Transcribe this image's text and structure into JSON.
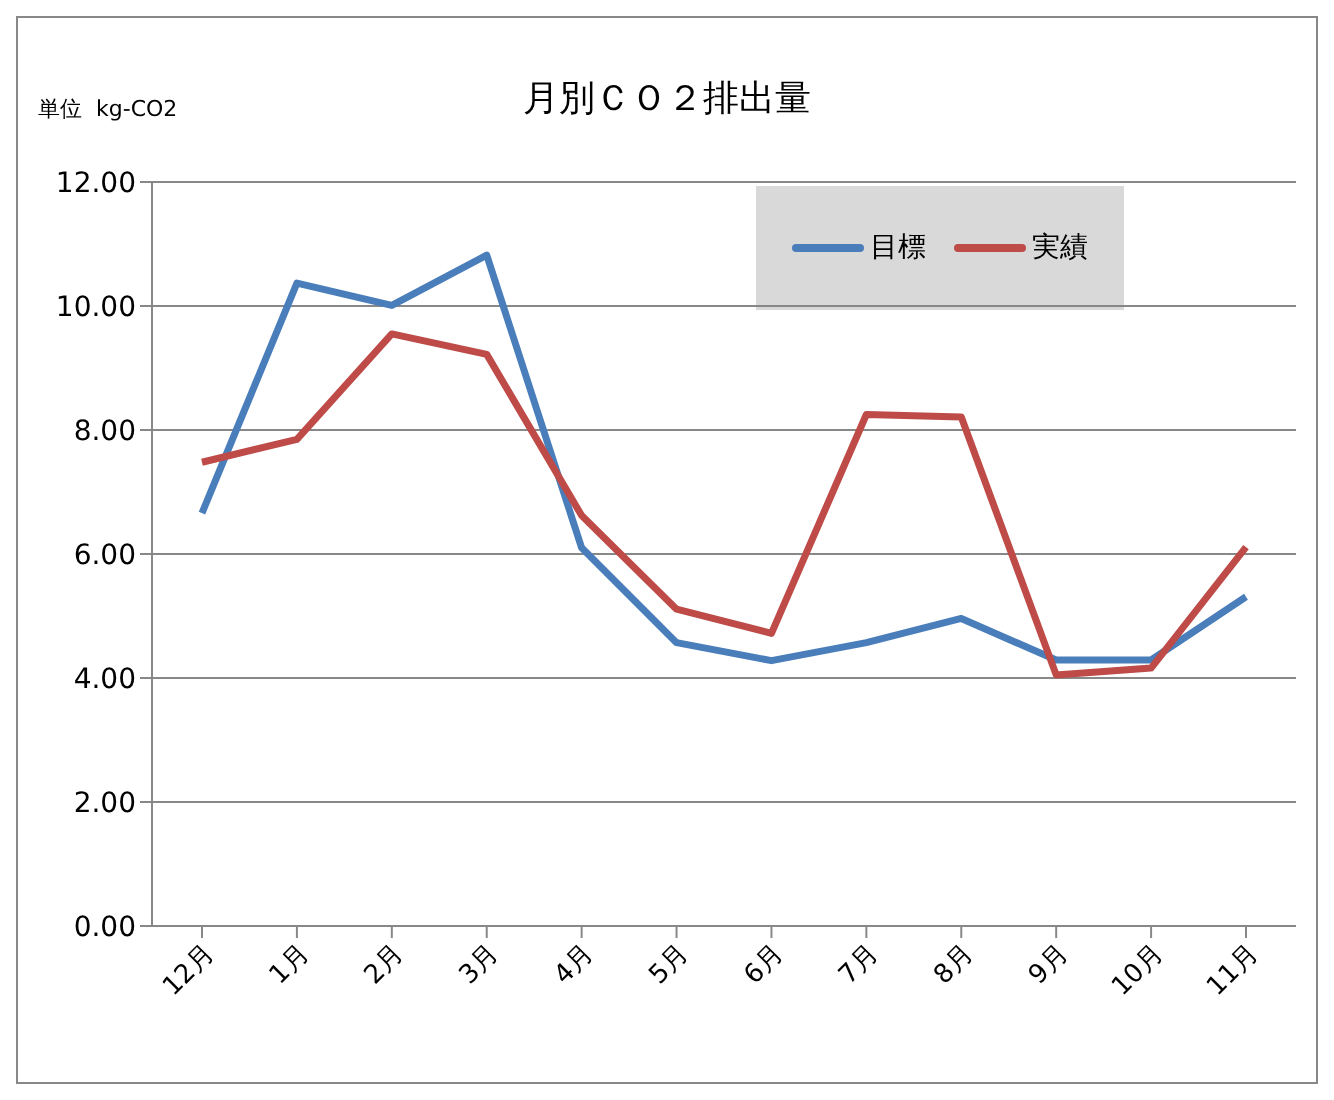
{
  "chart_data": {
    "type": "line",
    "title": "月別ＣＯ２排出量",
    "annotations": [
      "単位  kg-CO2"
    ],
    "categories": [
      "12月",
      "1月",
      "2月",
      "3月",
      "4月",
      "5月",
      "6月",
      "7月",
      "8月",
      "9月",
      "10月",
      "11月"
    ],
    "series": [
      {
        "name": "目標",
        "color": "#4a7ebb",
        "values": [
          6.66,
          10.37,
          10.01,
          10.82,
          6.1,
          4.57,
          4.28,
          4.57,
          4.96,
          4.29,
          4.29,
          5.31
        ]
      },
      {
        "name": "実績",
        "color": "#be4b48",
        "values": [
          7.48,
          7.85,
          9.55,
          9.22,
          6.62,
          5.11,
          4.72,
          8.25,
          8.21,
          4.05,
          4.16,
          6.11
        ]
      }
    ],
    "ylim": [
      0,
      12
    ],
    "yticks": [
      {
        "value": 0,
        "label": "0.00"
      },
      {
        "value": 2,
        "label": "2.00"
      },
      {
        "value": 4,
        "label": "4.00"
      },
      {
        "value": 6,
        "label": "6.00"
      },
      {
        "value": 8,
        "label": "8.00"
      },
      {
        "value": 10,
        "label": "10.00"
      },
      {
        "value": 12,
        "label": "12.00"
      }
    ],
    "grid": "y",
    "legend": "top right",
    "marker": "none",
    "line_style": "solid"
  }
}
